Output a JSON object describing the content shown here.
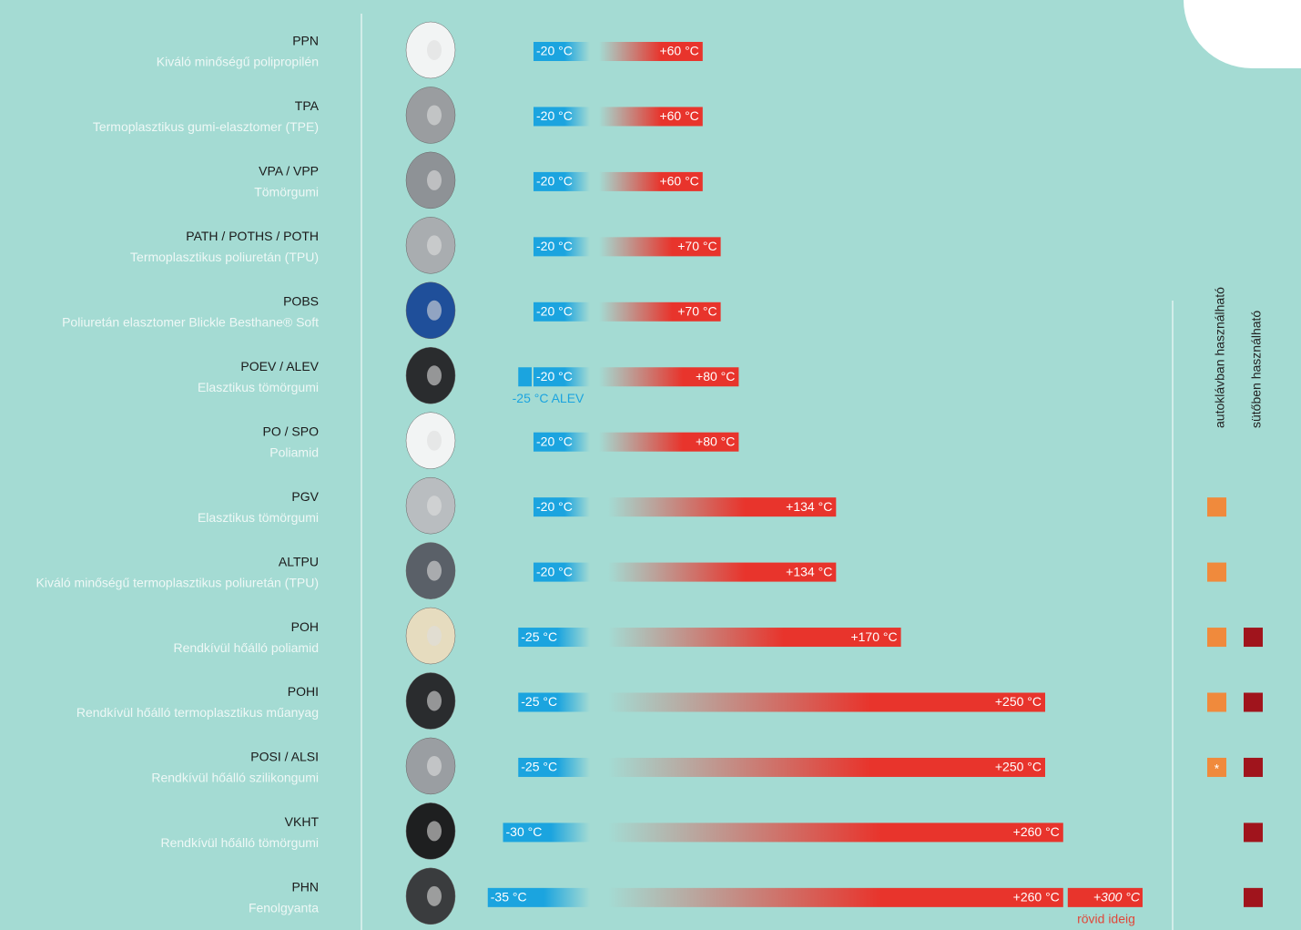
{
  "columns": [
    "autoklávban használható",
    "sütőben használható"
  ],
  "rows": [
    {
      "code": "PPN",
      "material": "Kiváló minőségű polipropilén",
      "min": -20,
      "min_label": "-20 °C",
      "max": 60,
      "max_label": "+60 °C",
      "autoclave": false,
      "oven": false
    },
    {
      "code": "TPA",
      "material": "Termoplasztikus gumi-elasztomer (TPE)",
      "min": -20,
      "min_label": "-20 °C",
      "max": 60,
      "max_label": "+60 °C",
      "autoclave": false,
      "oven": false
    },
    {
      "code": "VPA / VPP",
      "material": "Tömörgumi",
      "min": -20,
      "min_label": "-20 °C",
      "max": 60,
      "max_label": "+60 °C",
      "autoclave": false,
      "oven": false
    },
    {
      "code": "PATH / POTHS / POTH",
      "material": "Termoplasztikus poliuretán (TPU)",
      "min": -20,
      "min_label": "-20 °C",
      "max": 70,
      "max_label": "+70 °C",
      "autoclave": false,
      "oven": false
    },
    {
      "code": "POBS",
      "material": "Poliuretán elasztomer Blickle Besthane® Soft",
      "min": -20,
      "min_label": "-20 °C",
      "max": 70,
      "max_label": "+70 °C",
      "autoclave": false,
      "oven": false
    },
    {
      "code": "POEV / ALEV",
      "material": "Elasztikus tömörgumi",
      "min": -20,
      "min_label": "-20 °C",
      "max": 80,
      "max_label": "+80 °C",
      "extra_min": -25,
      "note": "-25 °C ALEV",
      "autoclave": false,
      "oven": false
    },
    {
      "code": "PO / SPO",
      "material": "Poliamid",
      "min": -20,
      "min_label": "-20 °C",
      "max": 80,
      "max_label": "+80 °C",
      "autoclave": false,
      "oven": false
    },
    {
      "code": "PGV",
      "material": "Elasztikus tömörgumi",
      "min": -20,
      "min_label": "-20 °C",
      "max": 134,
      "max_label": "+134 °C",
      "autoclave": true,
      "oven": false
    },
    {
      "code": "ALTPU",
      "material": "Kiváló minőségű termoplasztikus poliuretán (TPU)",
      "min": -20,
      "min_label": "-20 °C",
      "max": 134,
      "max_label": "+134 °C",
      "autoclave": true,
      "oven": false
    },
    {
      "code": "POH",
      "material": "Rendkívül hőálló poliamid",
      "min": -25,
      "min_label": "-25 °C",
      "max": 170,
      "max_label": "+170 °C",
      "autoclave": true,
      "oven": true
    },
    {
      "code": "POHI",
      "material": "Rendkívül hőálló termoplasztikus műanyag",
      "min": -25,
      "min_label": "-25 °C",
      "max": 250,
      "max_label": "+250 °C",
      "autoclave": true,
      "oven": true
    },
    {
      "code": "POSI / ALSI",
      "material": "Rendkívül hőálló szilikongumi",
      "min": -25,
      "min_label": "-25 °C",
      "max": 250,
      "max_label": "+250 °C",
      "autoclave": true,
      "autoclave_mark": "*",
      "oven": true
    },
    {
      "code": "VKHT",
      "material": "Rendkívül hőálló tömörgumi",
      "min": -30,
      "min_label": "-30 °C",
      "max": 260,
      "max_label": "+260 °C",
      "autoclave": false,
      "oven": true
    },
    {
      "code": "PHN",
      "material": "Fenolgyanta",
      "min": -35,
      "min_label": "-35 °C",
      "max": 260,
      "max_label": "+260 °C",
      "extra_max": 300,
      "extra_max_label": "+300 °C",
      "note": "rövid ideig",
      "autoclave": false,
      "oven": true
    }
  ]
}
